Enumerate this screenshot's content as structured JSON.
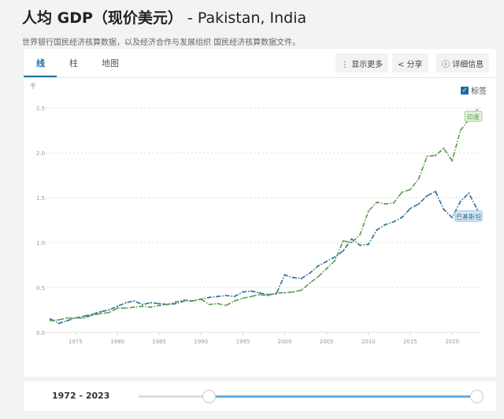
{
  "header": {
    "title_bold": "人均 GDP（现价美元）",
    "title_rest": " - Pakistan, India",
    "subtitle": "世界银行国民经济核算数据，以及经济合作与发展组织 国民经济核算数据文件。"
  },
  "tabs": [
    {
      "label": "线"
    },
    {
      "label": "柱"
    },
    {
      "label": "地图"
    }
  ],
  "toolbar": {
    "more": "显示更多",
    "share": "分享",
    "details": "详细信息",
    "labels": "标签"
  },
  "footer": {
    "range": "1972 - 2023"
  },
  "colors": {
    "pakistan": "#2a6f97",
    "india": "#5a9a4a",
    "accent": "#1a6fa3"
  },
  "chart_data": {
    "type": "line",
    "unit_label": "千",
    "xlim": [
      1972,
      2023
    ],
    "ylim": [
      0,
      2.5
    ],
    "yticks": [
      "0.0",
      "0.5",
      "1.0",
      "1.5",
      "2.0",
      "2.5"
    ],
    "xticks": [
      "1975",
      "1980",
      "1985",
      "1990",
      "1995",
      "2000",
      "2005",
      "2010",
      "2015",
      "2020"
    ],
    "x": [
      1972,
      1973,
      1974,
      1975,
      1976,
      1977,
      1978,
      1979,
      1980,
      1981,
      1982,
      1983,
      1984,
      1985,
      1986,
      1987,
      1988,
      1989,
      1990,
      1991,
      1992,
      1993,
      1994,
      1995,
      1996,
      1997,
      1998,
      1999,
      2000,
      2001,
      2002,
      2003,
      2004,
      2005,
      2006,
      2007,
      2008,
      2009,
      2010,
      2011,
      2012,
      2013,
      2014,
      2015,
      2016,
      2017,
      2018,
      2019,
      2020,
      2021,
      2022,
      2023
    ],
    "series": [
      {
        "name": "巴基斯坦",
        "color": "#2a6f97",
        "values": [
          0.15,
          0.1,
          0.13,
          0.16,
          0.18,
          0.2,
          0.23,
          0.25,
          0.29,
          0.33,
          0.35,
          0.31,
          0.33,
          0.32,
          0.31,
          0.32,
          0.35,
          0.35,
          0.37,
          0.39,
          0.4,
          0.41,
          0.4,
          0.45,
          0.46,
          0.44,
          0.42,
          0.43,
          0.64,
          0.61,
          0.6,
          0.66,
          0.74,
          0.79,
          0.84,
          0.91,
          1.04,
          0.97,
          0.98,
          1.14,
          1.2,
          1.23,
          1.28,
          1.38,
          1.43,
          1.52,
          1.57,
          1.37,
          1.28,
          1.46,
          1.55,
          1.37
        ]
      },
      {
        "name": "印度",
        "color": "#5a9a4a",
        "values": [
          0.13,
          0.14,
          0.16,
          0.16,
          0.16,
          0.19,
          0.21,
          0.22,
          0.27,
          0.27,
          0.28,
          0.29,
          0.28,
          0.3,
          0.31,
          0.34,
          0.36,
          0.35,
          0.37,
          0.31,
          0.32,
          0.3,
          0.35,
          0.38,
          0.4,
          0.42,
          0.41,
          0.44,
          0.44,
          0.45,
          0.47,
          0.55,
          0.62,
          0.71,
          0.8,
          1.02,
          1.0,
          1.09,
          1.35,
          1.45,
          1.43,
          1.44,
          1.56,
          1.59,
          1.71,
          1.96,
          1.97,
          2.05,
          1.91,
          2.25,
          2.37,
          2.48
        ]
      }
    ]
  }
}
